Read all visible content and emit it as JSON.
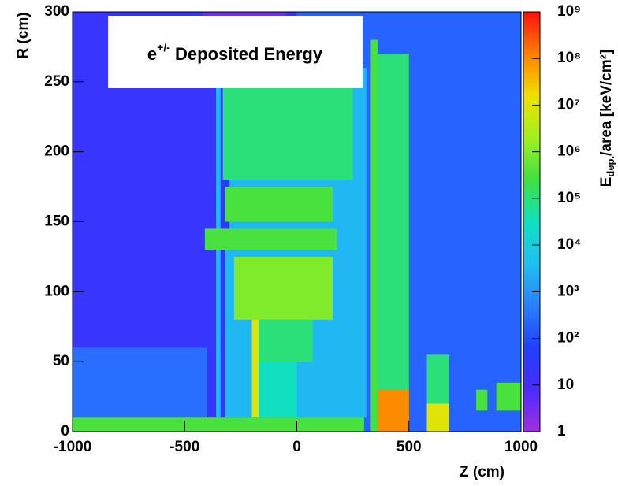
{
  "chart_data": {
    "type": "heatmap",
    "title": {
      "base": "e",
      "sup": "+/-",
      "rest": " Deposited Energy"
    },
    "x_label": "Z (cm)",
    "y_label": "R (cm)",
    "colorbar_label": {
      "base": "E",
      "sub": "dep.",
      "rest": "/area [keV/cm²]"
    },
    "xlim": [
      -1000,
      1000
    ],
    "ylim": [
      0,
      300
    ],
    "xticks": [
      -1000,
      -500,
      0,
      500,
      1000
    ],
    "yticks": [
      0,
      50,
      100,
      150,
      200,
      250,
      300
    ],
    "zlim": [
      1,
      1000000000
    ],
    "zscale": "log",
    "zticks": [
      1,
      10,
      {
        "value": 100,
        "label": "10²"
      },
      {
        "value": 1000,
        "label": "10³"
      },
      {
        "value": 10000,
        "label": "10⁴"
      },
      {
        "value": 100000,
        "label": "10⁵"
      },
      {
        "value": 1000000,
        "label": "10⁶"
      },
      {
        "value": 10000000,
        "label": "10⁷"
      },
      {
        "value": 100000000,
        "label": "10⁸"
      },
      {
        "value": 1000000000,
        "label": "10⁹"
      }
    ],
    "regions": [
      {
        "z": [
          -1000,
          1000
        ],
        "r": [
          0,
          300
        ],
        "value": 20
      },
      {
        "z": [
          0,
          1000
        ],
        "r": [
          0,
          300
        ],
        "value": 200
      },
      {
        "z": [
          -1000,
          -400
        ],
        "r": [
          0,
          60
        ],
        "value": 300
      },
      {
        "z": [
          -320,
          310
        ],
        "r": [
          10,
          260
        ],
        "value": 3000
      },
      {
        "z": [
          -330,
          250
        ],
        "r": [
          180,
          260
        ],
        "value": 100000
      },
      {
        "z": [
          -330,
          -300
        ],
        "r": [
          130,
          180
        ],
        "value": 50
      },
      {
        "z": [
          -360,
          -340
        ],
        "r": [
          10,
          260
        ],
        "value": 3000
      },
      {
        "z": [
          -320,
          160
        ],
        "r": [
          150,
          175
        ],
        "value": 300000
      },
      {
        "z": [
          -410,
          180
        ],
        "r": [
          130,
          145
        ],
        "value": 300000
      },
      {
        "z": [
          -280,
          160
        ],
        "r": [
          80,
          125
        ],
        "value": 1000000
      },
      {
        "z": [
          -200,
          70
        ],
        "r": [
          50,
          80
        ],
        "value": 100000
      },
      {
        "z": [
          -200,
          0
        ],
        "r": [
          10,
          50
        ],
        "value": 30000
      },
      {
        "z": [
          -200,
          -170
        ],
        "r": [
          10,
          80
        ],
        "value": 10000000
      },
      {
        "z": [
          330,
          360
        ],
        "r": [
          0,
          280
        ],
        "value": 300000
      },
      {
        "z": [
          360,
          500
        ],
        "r": [
          0,
          270
        ],
        "value": 100000
      },
      {
        "z": [
          360,
          500
        ],
        "r": [
          0,
          30
        ],
        "value": 100000000
      },
      {
        "z": [
          580,
          680
        ],
        "r": [
          0,
          55
        ],
        "value": 100000
      },
      {
        "z": [
          580,
          680
        ],
        "r": [
          0,
          20
        ],
        "value": 10000000
      },
      {
        "z": [
          800,
          850
        ],
        "r": [
          15,
          30
        ],
        "value": 300000
      },
      {
        "z": [
          890,
          1000
        ],
        "r": [
          15,
          35
        ],
        "value": 300000
      },
      {
        "z": [
          -1000,
          300
        ],
        "r": [
          0,
          10
        ],
        "value": 300000
      },
      {
        "z": [
          -420,
          -50
        ],
        "r": [
          295,
          300
        ],
        "value": 3
      }
    ]
  }
}
